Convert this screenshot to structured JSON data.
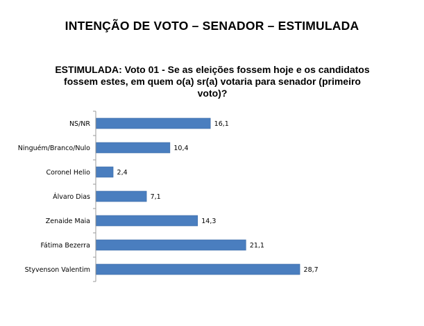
{
  "header": {
    "title": "INTENÇÃO DE VOTO – SENADOR – ESTIMULADA"
  },
  "chart_data": {
    "type": "bar",
    "orientation": "horizontal",
    "title": "ESTIMULADA: Voto 01 - Se as eleições fossem hoje e os candidatos fossem estes, em quem o(a) sr(a) votaria para senador (primeiro voto)?",
    "title_lines": [
      "ESTIMULADA: Voto 01 - Se as eleições fossem hoje e os candidatos",
      "fossem estes, em quem o(a) sr(a) votaria para senador (primeiro",
      "voto)?"
    ],
    "categories": [
      "NS/NR",
      "Ninguém/Branco/Nulo",
      "Coronel Helio",
      "Álvaro Dias",
      "Zenaide Maia",
      "Fátima Bezerra",
      "Styvenson Valentim"
    ],
    "values": [
      16.1,
      10.4,
      2.4,
      7.1,
      14.3,
      21.1,
      28.7
    ],
    "value_labels": [
      "16,1",
      "10,4",
      "2,4",
      "7,1",
      "14,3",
      "21,1",
      "28,7"
    ],
    "xlim": [
      0,
      35
    ],
    "grid": false,
    "legend": "none",
    "bar_color": "#4a7ebf",
    "bar_border_color": "#3b6aa5"
  }
}
